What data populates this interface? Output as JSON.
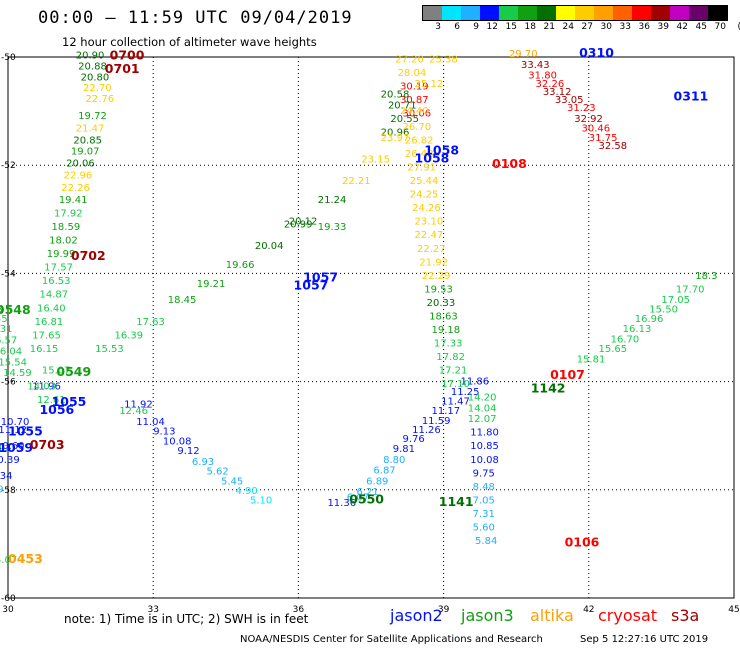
{
  "header": {
    "title": "00:00 – 11:59 UTC 09/04/2019",
    "subtitle": "12 hour collection of altimeter wave heights"
  },
  "color_scale": {
    "labels": [
      "3",
      "6",
      "9",
      "12",
      "15",
      "18",
      "21",
      "24",
      "27",
      "30",
      "33",
      "36",
      "39",
      "42",
      "45",
      "70",
      "(ft)"
    ],
    "colors": [
      "#808080",
      "#00e5ff",
      "#1fb0ff",
      "#0010ff",
      "#18cc4a",
      "#10a010",
      "#007000",
      "#ffff00",
      "#ffcc00",
      "#ffa000",
      "#ff6000",
      "#ff0000",
      "#a00000",
      "#c000c0",
      "#6a006a",
      "#000000"
    ]
  },
  "chart_data": {
    "type": "scatter",
    "x_range": [
      30,
      45
    ],
    "y_range": [
      -60,
      -50
    ],
    "x_ticks": [
      "30",
      "33",
      "36",
      "39",
      "42",
      "45"
    ],
    "y_ticks": [
      "-50",
      "-52",
      "-54",
      "-56",
      "-58",
      "-60"
    ],
    "labels": [
      {
        "t": "20.90",
        "x": 31.4,
        "y": -50.03,
        "c": "#007000"
      },
      {
        "t": "20.88",
        "x": 31.45,
        "y": -50.23,
        "c": "#007000"
      },
      {
        "t": "20.80",
        "x": 31.5,
        "y": -50.43,
        "c": "#007000"
      },
      {
        "t": "22.70",
        "x": 31.55,
        "y": -50.63,
        "c": "#ffcc00"
      },
      {
        "t": "22.76",
        "x": 31.6,
        "y": -50.83,
        "c": "#ffcc00"
      },
      {
        "t": "19.72",
        "x": 31.45,
        "y": -51.15,
        "c": "#10a010"
      },
      {
        "t": "21.47",
        "x": 31.4,
        "y": -51.38,
        "c": "#ffcc00"
      },
      {
        "t": "20.85",
        "x": 31.35,
        "y": -51.6,
        "c": "#007000"
      },
      {
        "t": "19.07",
        "x": 31.3,
        "y": -51.8,
        "c": "#10a010"
      },
      {
        "t": "20.06",
        "x": 31.2,
        "y": -52.02,
        "c": "#007000"
      },
      {
        "t": "22.96",
        "x": 31.15,
        "y": -52.25,
        "c": "#ffcc00"
      },
      {
        "t": "22.26",
        "x": 31.1,
        "y": -52.48,
        "c": "#ffcc00"
      },
      {
        "t": "19.41",
        "x": 31.05,
        "y": -52.7,
        "c": "#10a010"
      },
      {
        "t": "17.92",
        "x": 30.95,
        "y": -52.95,
        "c": "#18cc4a"
      },
      {
        "t": "18.59",
        "x": 30.9,
        "y": -53.2,
        "c": "#10a010"
      },
      {
        "t": "18.02",
        "x": 30.85,
        "y": -53.45,
        "c": "#10a010"
      },
      {
        "t": "19.99",
        "x": 30.8,
        "y": -53.7,
        "c": "#10a010"
      },
      {
        "t": "17.57",
        "x": 30.75,
        "y": -53.95,
        "c": "#18cc4a"
      },
      {
        "t": "16.53",
        "x": 30.7,
        "y": -54.2,
        "c": "#18cc4a"
      },
      {
        "t": "14.87",
        "x": 30.65,
        "y": -54.45,
        "c": "#18cc4a"
      },
      {
        "t": "16.40",
        "x": 30.6,
        "y": -54.7,
        "c": "#18cc4a"
      },
      {
        "t": "16.81",
        "x": 30.55,
        "y": -54.95,
        "c": "#18cc4a"
      },
      {
        "t": "17.65",
        "x": 30.5,
        "y": -55.2,
        "c": "#18cc4a"
      },
      {
        "t": "16.15",
        "x": 30.45,
        "y": -55.45,
        "c": "#18cc4a"
      },
      {
        "t": "18.23",
        "x": 29.3,
        "y": -54.72,
        "c": "#10a010"
      },
      {
        "t": "16.55",
        "x": 29.4,
        "y": -54.9,
        "c": "#18cc4a"
      },
      {
        "t": "15.31",
        "x": 29.5,
        "y": -55.08,
        "c": "#18cc4a"
      },
      {
        "t": "16.57",
        "x": 29.6,
        "y": -55.3,
        "c": "#18cc4a"
      },
      {
        "t": "16.04",
        "x": 29.7,
        "y": -55.5,
        "c": "#18cc4a"
      },
      {
        "t": "15.54",
        "x": 29.8,
        "y": -55.7,
        "c": "#18cc4a"
      },
      {
        "t": "14.59",
        "x": 29.9,
        "y": -55.9,
        "c": "#18cc4a"
      },
      {
        "t": "11.96",
        "x": 30.5,
        "y": -56.15,
        "c": "#0010ff"
      },
      {
        "t": "11.92",
        "x": 32.4,
        "y": -56.48,
        "c": "#0010ff"
      },
      {
        "t": "12.46",
        "x": 32.3,
        "y": -56.6,
        "c": "#18cc4a"
      },
      {
        "t": "11.04",
        "x": 32.65,
        "y": -56.8,
        "c": "#0010ff"
      },
      {
        "t": "9.13",
        "x": 33.0,
        "y": -56.98,
        "c": "#0010ff"
      },
      {
        "t": "10.08",
        "x": 33.2,
        "y": -57.16,
        "c": "#0010ff"
      },
      {
        "t": "9.12",
        "x": 33.5,
        "y": -57.34,
        "c": "#0010ff"
      },
      {
        "t": "6.93",
        "x": 33.8,
        "y": -57.54,
        "c": "#1fb0ff"
      },
      {
        "t": "5.62",
        "x": 34.1,
        "y": -57.72,
        "c": "#1fb0ff"
      },
      {
        "t": "5.45",
        "x": 34.4,
        "y": -57.9,
        "c": "#1fb0ff"
      },
      {
        "t": "4.90",
        "x": 34.7,
        "y": -58.08,
        "c": "#00e5ff"
      },
      {
        "t": "5.10",
        "x": 35.0,
        "y": -58.25,
        "c": "#00e5ff"
      },
      {
        "t": "11.36",
        "x": 36.6,
        "y": -58.3,
        "c": "#0010ff"
      },
      {
        "t": "6.07",
        "x": 37.0,
        "y": -58.2,
        "c": "#1fb0ff"
      },
      {
        "t": "6.21",
        "x": 37.2,
        "y": -58.1,
        "c": "#1fb0ff"
      },
      {
        "t": "6.89",
        "x": 37.4,
        "y": -57.9,
        "c": "#1fb0ff"
      },
      {
        "t": "6.87",
        "x": 37.55,
        "y": -57.7,
        "c": "#1fb0ff"
      },
      {
        "t": "8.80",
        "x": 37.75,
        "y": -57.5,
        "c": "#1fb0ff"
      },
      {
        "t": "9.81",
        "x": 37.95,
        "y": -57.3,
        "c": "#0010ff"
      },
      {
        "t": "9.76",
        "x": 38.15,
        "y": -57.12,
        "c": "#0010ff"
      },
      {
        "t": "11.26",
        "x": 38.35,
        "y": -56.95,
        "c": "#0010ff"
      },
      {
        "t": "11.59",
        "x": 38.55,
        "y": -56.78,
        "c": "#0010ff"
      },
      {
        "t": "11.17",
        "x": 38.75,
        "y": -56.6,
        "c": "#0010ff"
      },
      {
        "t": "11.47",
        "x": 38.95,
        "y": -56.42,
        "c": "#0010ff"
      },
      {
        "t": "11.25",
        "x": 39.15,
        "y": -56.25,
        "c": "#0010ff"
      },
      {
        "t": "11.86",
        "x": 39.35,
        "y": -56.05,
        "c": "#0010ff"
      },
      {
        "t": "14.20",
        "x": 39.5,
        "y": -56.35,
        "c": "#18cc4a"
      },
      {
        "t": "14.04",
        "x": 39.5,
        "y": -56.55,
        "c": "#18cc4a"
      },
      {
        "t": "12.07",
        "x": 39.5,
        "y": -56.75,
        "c": "#18cc4a"
      },
      {
        "t": "11.80",
        "x": 39.55,
        "y": -57.0,
        "c": "#0010ff"
      },
      {
        "t": "10.85",
        "x": 39.55,
        "y": -57.25,
        "c": "#0010ff"
      },
      {
        "t": "10.08",
        "x": 39.55,
        "y": -57.5,
        "c": "#0010ff"
      },
      {
        "t": "9.75",
        "x": 39.6,
        "y": -57.75,
        "c": "#0010ff"
      },
      {
        "t": "8.48",
        "x": 39.6,
        "y": -58.0,
        "c": "#1fb0ff"
      },
      {
        "t": "7.05",
        "x": 39.6,
        "y": -58.25,
        "c": "#1fb0ff"
      },
      {
        "t": "7.31",
        "x": 39.6,
        "y": -58.5,
        "c": "#1fb0ff"
      },
      {
        "t": "5.60",
        "x": 39.6,
        "y": -58.75,
        "c": "#1fb0ff"
      },
      {
        "t": "5.84",
        "x": 39.65,
        "y": -59.0,
        "c": "#1fb0ff"
      },
      {
        "t": "27.20",
        "x": 38.0,
        "y": -50.1,
        "c": "#ffcc00"
      },
      {
        "t": "28.04",
        "x": 38.05,
        "y": -50.35,
        "c": "#ffcc00"
      },
      {
        "t": "30.19",
        "x": 38.1,
        "y": -50.6,
        "c": "#ff0000"
      },
      {
        "t": "30.87",
        "x": 38.1,
        "y": -50.85,
        "c": "#ff0000"
      },
      {
        "t": "30.06",
        "x": 38.15,
        "y": -51.1,
        "c": "#ff0000"
      },
      {
        "t": "26.70",
        "x": 38.15,
        "y": -51.35,
        "c": "#ffcc00"
      },
      {
        "t": "26.82",
        "x": 38.2,
        "y": -51.6,
        "c": "#ffcc00"
      },
      {
        "t": "26.48",
        "x": 38.2,
        "y": -51.85,
        "c": "#ffcc00"
      },
      {
        "t": "27.91",
        "x": 38.25,
        "y": -52.1,
        "c": "#ffcc00"
      },
      {
        "t": "25.44",
        "x": 38.3,
        "y": -52.35,
        "c": "#ffcc00"
      },
      {
        "t": "24.25",
        "x": 38.3,
        "y": -52.6,
        "c": "#ffcc00"
      },
      {
        "t": "24.26",
        "x": 38.35,
        "y": -52.85,
        "c": "#ffcc00"
      },
      {
        "t": "23.10",
        "x": 38.4,
        "y": -53.1,
        "c": "#ffcc00"
      },
      {
        "t": "22.47",
        "x": 38.4,
        "y": -53.35,
        "c": "#ffcc00"
      },
      {
        "t": "22.27",
        "x": 38.45,
        "y": -53.6,
        "c": "#ffcc00"
      },
      {
        "t": "21.92",
        "x": 38.5,
        "y": -53.85,
        "c": "#ffcc00"
      },
      {
        "t": "22.29",
        "x": 38.55,
        "y": -54.1,
        "c": "#ffcc00"
      },
      {
        "t": "19.53",
        "x": 38.6,
        "y": -54.35,
        "c": "#10a010"
      },
      {
        "t": "20.33",
        "x": 38.65,
        "y": -54.6,
        "c": "#007000"
      },
      {
        "t": "18.63",
        "x": 38.7,
        "y": -54.85,
        "c": "#10a010"
      },
      {
        "t": "19.18",
        "x": 38.75,
        "y": -55.1,
        "c": "#10a010"
      },
      {
        "t": "17.33",
        "x": 38.8,
        "y": -55.35,
        "c": "#18cc4a"
      },
      {
        "t": "17.82",
        "x": 38.85,
        "y": -55.6,
        "c": "#18cc4a"
      },
      {
        "t": "17.21",
        "x": 38.9,
        "y": -55.85,
        "c": "#18cc4a"
      },
      {
        "t": "17.10",
        "x": 38.95,
        "y": -56.1,
        "c": "#18cc4a"
      },
      {
        "t": "20.55",
        "x": 37.9,
        "y": -51.2,
        "c": "#007000"
      },
      {
        "t": "20.96",
        "x": 37.7,
        "y": -51.45,
        "c": "#007000"
      },
      {
        "t": "20.71",
        "x": 37.85,
        "y": -50.95,
        "c": "#007000"
      },
      {
        "t": "20.58",
        "x": 37.7,
        "y": -50.75,
        "c": "#007000"
      },
      {
        "t": "19.33",
        "x": 36.4,
        "y": -53.2,
        "c": "#10a010"
      },
      {
        "t": "20.99",
        "x": 35.7,
        "y": -53.15,
        "c": "#007000"
      },
      {
        "t": "29.70",
        "x": 40.35,
        "y": -50.0,
        "c": "#ffa000"
      },
      {
        "t": "33.43",
        "x": 40.6,
        "y": -50.2,
        "c": "#a00000"
      },
      {
        "t": "31.80",
        "x": 40.75,
        "y": -50.4,
        "c": "#ff0000"
      },
      {
        "t": "32.26",
        "x": 40.9,
        "y": -50.55,
        "c": "#ff0000"
      },
      {
        "t": "33.12",
        "x": 41.05,
        "y": -50.7,
        "c": "#a00000"
      },
      {
        "t": "33.05",
        "x": 41.3,
        "y": -50.85,
        "c": "#a00000"
      },
      {
        "t": "31.23",
        "x": 41.55,
        "y": -51.0,
        "c": "#ff0000"
      },
      {
        "t": "32.92",
        "x": 41.7,
        "y": -51.2,
        "c": "#a00000"
      },
      {
        "t": "30.46",
        "x": 41.85,
        "y": -51.38,
        "c": "#ff0000"
      },
      {
        "t": "31.75",
        "x": 42.0,
        "y": -51.55,
        "c": "#ff0000"
      },
      {
        "t": "32.58",
        "x": 42.2,
        "y": -51.7,
        "c": "#a00000"
      },
      {
        "t": "18.3",
        "x": 44.2,
        "y": -54.1,
        "c": "#10a010"
      },
      {
        "t": "17.70",
        "x": 43.8,
        "y": -54.35,
        "c": "#18cc4a"
      },
      {
        "t": "17.05",
        "x": 43.5,
        "y": -54.55,
        "c": "#18cc4a"
      },
      {
        "t": "15.50",
        "x": 43.25,
        "y": -54.72,
        "c": "#18cc4a"
      },
      {
        "t": "16.96",
        "x": 42.95,
        "y": -54.9,
        "c": "#18cc4a"
      },
      {
        "t": "16.13",
        "x": 42.7,
        "y": -55.08,
        "c": "#18cc4a"
      },
      {
        "t": "16.70",
        "x": 42.45,
        "y": -55.28,
        "c": "#18cc4a"
      },
      {
        "t": "15.65",
        "x": 42.2,
        "y": -55.45,
        "c": "#18cc4a"
      },
      {
        "t": "15.81",
        "x": 41.75,
        "y": -55.65,
        "c": "#18cc4a"
      },
      {
        "t": "12.17",
        "x": 29.45,
        "y": -57.3,
        "c": "#18cc4a"
      },
      {
        "t": "10.70",
        "x": 29.85,
        "y": -56.8,
        "c": "#0010ff"
      },
      {
        "t": "11.12",
        "x": 29.8,
        "y": -56.95,
        "c": "#0010ff"
      },
      {
        "t": "10.60",
        "x": 29.75,
        "y": -57.25,
        "c": "#0010ff"
      },
      {
        "t": "10.39",
        "x": 29.65,
        "y": -57.5,
        "c": "#0010ff"
      },
      {
        "t": "10.34",
        "x": 29.5,
        "y": -57.8,
        "c": "#0010ff"
      },
      {
        "t": "7.79",
        "x": 29.45,
        "y": -58.05,
        "c": "#1fb0ff"
      },
      {
        "t": "6.89",
        "x": 29.3,
        "y": -58.35,
        "c": "#1fb0ff"
      },
      {
        "t": "5.44",
        "x": 29.3,
        "y": -58.65,
        "c": "#1fb0ff"
      },
      {
        "t": "14.07",
        "x": 29.6,
        "y": -59.35,
        "c": "#18cc4a"
      },
      {
        "t": "12.61",
        "x": 30.6,
        "y": -56.4,
        "c": "#18cc4a"
      },
      {
        "t": "14.03",
        "x": 30.4,
        "y": -56.15,
        "c": "#18cc4a"
      },
      {
        "t": "15.07",
        "x": 30.7,
        "y": -55.85,
        "c": "#18cc4a"
      },
      {
        "t": "15.53",
        "x": 31.8,
        "y": -55.45,
        "c": "#18cc4a"
      },
      {
        "t": "16.39",
        "x": 32.2,
        "y": -55.2,
        "c": "#18cc4a"
      },
      {
        "t": "17.63",
        "x": 32.65,
        "y": -54.95,
        "c": "#18cc4a"
      },
      {
        "t": "18.45",
        "x": 33.3,
        "y": -54.55,
        "c": "#10a010"
      },
      {
        "t": "19.21",
        "x": 33.9,
        "y": -54.25,
        "c": "#10a010"
      },
      {
        "t": "19.66",
        "x": 34.5,
        "y": -53.9,
        "c": "#10a010"
      },
      {
        "t": "20.04",
        "x": 35.1,
        "y": -53.55,
        "c": "#007000"
      },
      {
        "t": "20.12",
        "x": 35.8,
        "y": -53.1,
        "c": "#007000"
      },
      {
        "t": "21.24",
        "x": 36.4,
        "y": -52.7,
        "c": "#007000"
      },
      {
        "t": "22.21",
        "x": 36.9,
        "y": -52.35,
        "c": "#ffcc00"
      },
      {
        "t": "23.15",
        "x": 37.3,
        "y": -51.95,
        "c": "#ffcc00"
      },
      {
        "t": "23.97",
        "x": 37.7,
        "y": -51.55,
        "c": "#ffcc00"
      },
      {
        "t": "24.40",
        "x": 38.1,
        "y": -51.05,
        "c": "#ffcc00"
      },
      {
        "t": "25.12",
        "x": 38.4,
        "y": -50.55,
        "c": "#ffcc00"
      },
      {
        "t": "25.38",
        "x": 38.7,
        "y": -50.1,
        "c": "#ffcc00"
      }
    ],
    "passes": [
      {
        "t": "0700",
        "x": 32.1,
        "y": -50.05,
        "c": "#a00000"
      },
      {
        "t": "0701",
        "x": 32.0,
        "y": -50.3,
        "c": "#a00000"
      },
      {
        "t": "0702",
        "x": 31.3,
        "y": -53.75,
        "c": "#a00000"
      },
      {
        "t": "0548",
        "x": 29.75,
        "y": -54.75,
        "c": "#10a010"
      },
      {
        "t": "0549",
        "x": 31.0,
        "y": -55.9,
        "c": "#10a010"
      },
      {
        "t": "1055",
        "x": 30.9,
        "y": -56.45,
        "c": "#0010ff"
      },
      {
        "t": "1056",
        "x": 30.65,
        "y": -56.6,
        "c": "#0010ff"
      },
      {
        "t": "1055",
        "x": 30.0,
        "y": -57.0,
        "c": "#0010ff"
      },
      {
        "t": "1059",
        "x": 29.8,
        "y": -57.3,
        "c": "#0010ff"
      },
      {
        "t": "0703",
        "x": 30.45,
        "y": -57.25,
        "c": "#a00000"
      },
      {
        "t": "0453",
        "x": 30.0,
        "y": -59.35,
        "c": "#ffa000"
      },
      {
        "t": "1057",
        "x": 36.1,
        "y": -54.15,
        "c": "#0010ff"
      },
      {
        "t": "1057",
        "x": 35.9,
        "y": -54.3,
        "c": "#0010ff"
      },
      {
        "t": "1058",
        "x": 38.6,
        "y": -51.8,
        "c": "#0010ff"
      },
      {
        "t": "1058",
        "x": 38.4,
        "y": -51.95,
        "c": "#0010ff"
      },
      {
        "t": "0108",
        "x": 40.0,
        "y": -52.05,
        "c": "#ff0000"
      },
      {
        "t": "0550",
        "x": 37.05,
        "y": -58.25,
        "c": "#007000"
      },
      {
        "t": "1141",
        "x": 38.9,
        "y": -58.3,
        "c": "#007000"
      },
      {
        "t": "1142",
        "x": 40.8,
        "y": -56.2,
        "c": "#007000"
      },
      {
        "t": "0107",
        "x": 41.2,
        "y": -55.95,
        "c": "#ff0000"
      },
      {
        "t": "0106",
        "x": 41.5,
        "y": -59.05,
        "c": "#ff0000"
      },
      {
        "t": "0310",
        "x": 41.8,
        "y": -50.0,
        "c": "#0010ff"
      },
      {
        "t": "0311",
        "x": 43.75,
        "y": -50.8,
        "c": "#0010ff"
      }
    ]
  },
  "footer": {
    "note": "note: 1) Time is in UTC; 2) SWH is in feet",
    "satellites": [
      {
        "name": "jason2",
        "color": "#0010ff"
      },
      {
        "name": "jason3",
        "color": "#10a010"
      },
      {
        "name": "altika",
        "color": "#ffa000"
      },
      {
        "name": "cryosat",
        "color": "#ff0000"
      },
      {
        "name": "s3a",
        "color": "#a00000"
      }
    ],
    "credit": "NOAA/NESDIS Center for Satellite Applications and Research",
    "generated": "Sep  5 12:27:16 UTC 2019"
  }
}
